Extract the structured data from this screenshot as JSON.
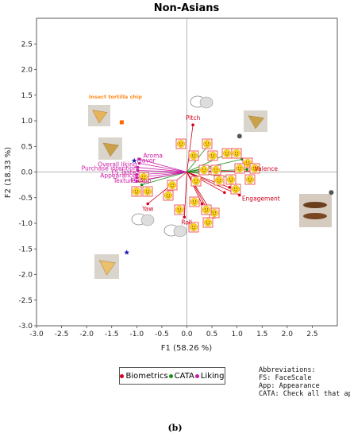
{
  "chart_data": {
    "type": "scatter",
    "title": "Non-Asians",
    "xlabel": "F1 (58.26 %)",
    "ylabel": "F2 (18.33 %)",
    "xlim": [
      -3.0,
      3.0
    ],
    "ylim": [
      -3.0,
      3.0
    ],
    "x_ticks": [
      "-3.0",
      "-2.5",
      "-2.0",
      "-1.5",
      "-1.0",
      "-0.5",
      "0.0",
      "0.5",
      "1.0",
      "1.5",
      "2.0",
      "2.5"
    ],
    "y_ticks": [
      "-3.0",
      "-2.5",
      "-2.0",
      "-1.5",
      "-1.0",
      "-0.5",
      "0.0",
      "0.5",
      "1.0",
      "1.5",
      "2.0",
      "2.5"
    ],
    "grid": false,
    "series": [
      {
        "name": "Biometrics",
        "color": "#d0021b",
        "points": [
          {
            "label": "Pitch",
            "x": 0.12,
            "y": 0.92
          },
          {
            "label": "Valence",
            "x": 1.3,
            "y": 0.02
          },
          {
            "label": "Engagement",
            "x": 1.05,
            "y": -0.45
          },
          {
            "label": "Yaw",
            "x": -0.78,
            "y": -0.62
          },
          {
            "label": "Roll",
            "x": -0.05,
            "y": -0.88
          }
        ],
        "unlabeled_vectors": [
          {
            "x": 0.55,
            "y": -0.88
          },
          {
            "x": 0.3,
            "y": -0.62
          },
          {
            "x": 0.75,
            "y": -0.4
          },
          {
            "x": 0.85,
            "y": -0.3
          },
          {
            "x": 0.4,
            "y": -0.72
          }
        ]
      },
      {
        "name": "CATA",
        "color": "#1a8c1a",
        "points": [],
        "unlabeled_vectors": [
          {
            "x": 0.45,
            "y": 0.55
          },
          {
            "x": 0.8,
            "y": 0.35
          },
          {
            "x": 1.1,
            "y": 0.25
          },
          {
            "x": 0.9,
            "y": -0.1
          },
          {
            "x": 0.6,
            "y": 0.1
          },
          {
            "x": -0.9,
            "y": -0.25
          },
          {
            "x": -0.95,
            "y": -0.18
          },
          {
            "x": 1.2,
            "y": 0.05
          }
        ]
      },
      {
        "name": "Liking",
        "color": "#cc1aa6",
        "points": [
          {
            "label": "Aroma",
            "x": -0.95,
            "y": 0.25
          },
          {
            "label": "Flavor",
            "x": -0.95,
            "y": 0.17
          },
          {
            "label": "Overall liking",
            "x": -0.98,
            "y": 0.09
          },
          {
            "label": "Purchase intention",
            "x": -0.98,
            "y": 0.03
          },
          {
            "label": "FS Taste",
            "x": -1.0,
            "y": -0.05
          },
          {
            "label": "Appearance",
            "x": -1.0,
            "y": -0.11
          },
          {
            "label": "Texture",
            "x": -1.0,
            "y": -0.18
          },
          {
            "label": "FS App",
            "x": -1.0,
            "y": -0.18
          }
        ]
      }
    ],
    "samples": [
      {
        "label": "Insect tortilla chip",
        "x": -1.3,
        "y": 0.97,
        "color": "#ff6600",
        "marker": "square"
      },
      {
        "x": -1.05,
        "y": 0.22,
        "color": "#1a1aaa",
        "marker": "star"
      },
      {
        "x": -1.2,
        "y": -1.57,
        "color": "#1a1aaa",
        "marker": "star"
      },
      {
        "x": 1.05,
        "y": 0.7,
        "color": "#555555",
        "marker": "circle"
      },
      {
        "x": 2.88,
        "y": -0.4,
        "color": "#555555",
        "marker": "circle"
      }
    ],
    "legend_placement": "bottom"
  },
  "legend": {
    "items": [
      {
        "label": "Biometrics",
        "color": "#d0021b"
      },
      {
        "label": "CATA",
        "color": "#1a8c1a"
      },
      {
        "label": "Liking",
        "color": "#cc1aa6"
      }
    ]
  },
  "abbreviations": {
    "heading": "Abbreviations:",
    "lines": [
      "FS: FaceScale",
      "App: Appearance",
      "CATA: Check all that apply"
    ]
  },
  "caption": "(b)"
}
